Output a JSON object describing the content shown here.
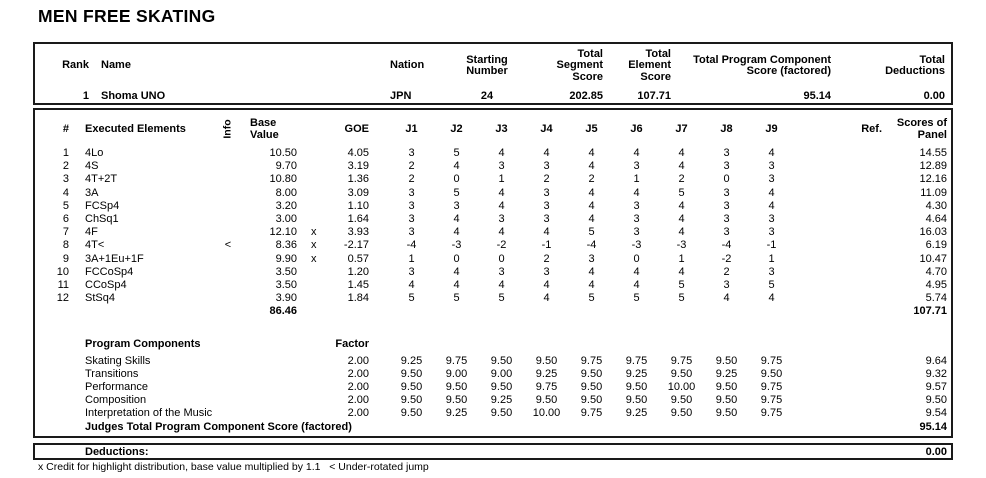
{
  "page": {
    "title": "MEN FREE SKATING"
  },
  "summary": {
    "headers": {
      "rank": "Rank",
      "name": "Name",
      "nation": "Nation",
      "starting_number": "Starting\nNumber",
      "total_segment_score": "Total\nSegment\nScore",
      "total_element_score": "Total\nElement\nScore",
      "total_pcs": "Total Program Component\nScore (factored)",
      "total_deductions": "Total\nDeductions"
    },
    "row": {
      "rank": "1",
      "name": "Shoma UNO",
      "nation": "JPN",
      "starting_number": "24",
      "total_segment_score": "202.85",
      "total_element_score": "107.71",
      "total_pcs": "95.14",
      "total_deductions": "0.00"
    }
  },
  "elements": {
    "headers": {
      "num": "#",
      "name": "Executed Elements",
      "info": "Info",
      "base": "Base\nValue",
      "goe": "GOE",
      "judges": [
        "J1",
        "J2",
        "J3",
        "J4",
        "J5",
        "J6",
        "J7",
        "J8",
        "J9"
      ],
      "ref": "Ref.",
      "panel": "Scores of\nPanel"
    },
    "rows": [
      {
        "num": "1",
        "name": "4Lo",
        "info": "",
        "base": "10.50",
        "x": "",
        "goe": "4.05",
        "j": [
          "3",
          "5",
          "4",
          "4",
          "4",
          "4",
          "4",
          "3",
          "4"
        ],
        "ref": "",
        "panel": "14.55"
      },
      {
        "num": "2",
        "name": "4S",
        "info": "",
        "base": "9.70",
        "x": "",
        "goe": "3.19",
        "j": [
          "2",
          "4",
          "3",
          "3",
          "4",
          "3",
          "4",
          "3",
          "3"
        ],
        "ref": "",
        "panel": "12.89"
      },
      {
        "num": "3",
        "name": "4T+2T",
        "info": "",
        "base": "10.80",
        "x": "",
        "goe": "1.36",
        "j": [
          "2",
          "0",
          "1",
          "2",
          "2",
          "1",
          "2",
          "0",
          "3"
        ],
        "ref": "",
        "panel": "12.16"
      },
      {
        "num": "4",
        "name": "3A",
        "info": "",
        "base": "8.00",
        "x": "",
        "goe": "3.09",
        "j": [
          "3",
          "5",
          "4",
          "3",
          "4",
          "4",
          "5",
          "3",
          "4"
        ],
        "ref": "",
        "panel": "11.09"
      },
      {
        "num": "5",
        "name": "FCSp4",
        "info": "",
        "base": "3.20",
        "x": "",
        "goe": "1.10",
        "j": [
          "3",
          "3",
          "4",
          "3",
          "4",
          "3",
          "4",
          "3",
          "4"
        ],
        "ref": "",
        "panel": "4.30"
      },
      {
        "num": "6",
        "name": "ChSq1",
        "info": "",
        "base": "3.00",
        "x": "",
        "goe": "1.64",
        "j": [
          "3",
          "4",
          "3",
          "3",
          "4",
          "3",
          "4",
          "3",
          "3"
        ],
        "ref": "",
        "panel": "4.64"
      },
      {
        "num": "7",
        "name": "4F",
        "info": "",
        "base": "12.10",
        "x": "x",
        "goe": "3.93",
        "j": [
          "3",
          "4",
          "4",
          "4",
          "5",
          "3",
          "4",
          "3",
          "3"
        ],
        "ref": "",
        "panel": "16.03"
      },
      {
        "num": "8",
        "name": "4T<",
        "info": "<",
        "base": "8.36",
        "x": "x",
        "goe": "-2.17",
        "j": [
          "-4",
          "-3",
          "-2",
          "-1",
          "-4",
          "-3",
          "-3",
          "-4",
          "-1"
        ],
        "ref": "",
        "panel": "6.19"
      },
      {
        "num": "9",
        "name": "3A+1Eu+1F",
        "info": "",
        "base": "9.90",
        "x": "x",
        "goe": "0.57",
        "j": [
          "1",
          "0",
          "0",
          "2",
          "3",
          "0",
          "1",
          "-2",
          "1"
        ],
        "ref": "",
        "panel": "10.47"
      },
      {
        "num": "10",
        "name": "FCCoSp4",
        "info": "",
        "base": "3.50",
        "x": "",
        "goe": "1.20",
        "j": [
          "3",
          "4",
          "3",
          "3",
          "4",
          "4",
          "4",
          "2",
          "3"
        ],
        "ref": "",
        "panel": "4.70"
      },
      {
        "num": "11",
        "name": "CCoSp4",
        "info": "",
        "base": "3.50",
        "x": "",
        "goe": "1.45",
        "j": [
          "4",
          "4",
          "4",
          "4",
          "4",
          "4",
          "5",
          "3",
          "5"
        ],
        "ref": "",
        "panel": "4.95"
      },
      {
        "num": "12",
        "name": "StSq4",
        "info": "",
        "base": "3.90",
        "x": "",
        "goe": "1.84",
        "j": [
          "5",
          "5",
          "5",
          "4",
          "5",
          "5",
          "5",
          "4",
          "4"
        ],
        "ref": "",
        "panel": "5.74"
      }
    ],
    "totals": {
      "base": "86.46",
      "panel": "107.71"
    }
  },
  "components": {
    "title": "Program Components",
    "factor_header": "Factor",
    "rows": [
      {
        "name": "Skating Skills",
        "factor": "2.00",
        "j": [
          "9.25",
          "9.75",
          "9.50",
          "9.50",
          "9.75",
          "9.75",
          "9.75",
          "9.50",
          "9.75"
        ],
        "panel": "9.64"
      },
      {
        "name": "Transitions",
        "factor": "2.00",
        "j": [
          "9.50",
          "9.00",
          "9.00",
          "9.25",
          "9.50",
          "9.25",
          "9.50",
          "9.25",
          "9.50"
        ],
        "panel": "9.32"
      },
      {
        "name": "Performance",
        "factor": "2.00",
        "j": [
          "9.50",
          "9.50",
          "9.50",
          "9.75",
          "9.50",
          "9.50",
          "10.00",
          "9.50",
          "9.75"
        ],
        "panel": "9.57"
      },
      {
        "name": "Composition",
        "factor": "2.00",
        "j": [
          "9.50",
          "9.50",
          "9.25",
          "9.50",
          "9.50",
          "9.50",
          "9.50",
          "9.50",
          "9.75"
        ],
        "panel": "9.50"
      },
      {
        "name": "Interpretation of the Music",
        "factor": "2.00",
        "j": [
          "9.50",
          "9.25",
          "9.50",
          "10.00",
          "9.75",
          "9.25",
          "9.50",
          "9.50",
          "9.75"
        ],
        "panel": "9.54"
      }
    ],
    "total_label": "Judges Total Program Component Score (factored)",
    "total_value": "95.14"
  },
  "deductions": {
    "label": "Deductions:",
    "value": "0.00"
  },
  "footnote": "x Credit for highlight distribution, base value multiplied by 1.1   < Under-rotated jump"
}
